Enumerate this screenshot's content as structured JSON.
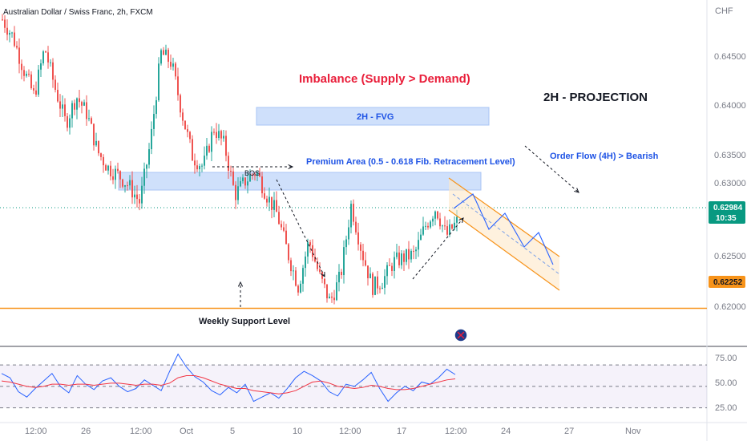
{
  "chart_data": {
    "type": "candlestick",
    "symbol_title": "Australian Dollar / Swiss Franc, 2h, FXCM",
    "currency": "CHF",
    "price_axis": {
      "ylim": [
        0.619,
        0.651
      ],
      "ticks": [
        "0.64500",
        "0.64000",
        "0.63500",
        "0.63000",
        "0.62500",
        "0.62000"
      ]
    },
    "time_axis_ticks": [
      "12:00",
      "26",
      "12:00",
      "Oct",
      "5",
      "10",
      "12:00",
      "17",
      "12:00",
      "24",
      "27",
      "Nov"
    ],
    "current_price": "0.62984",
    "countdown": "10:35",
    "support_price": "0.62252",
    "price_path": [
      0.6492,
      0.6476,
      0.6446,
      0.6421,
      0.6466,
      0.6428,
      0.6396,
      0.6421,
      0.6405,
      0.637,
      0.6355,
      0.6348,
      0.6338,
      0.6323,
      0.6378,
      0.6461,
      0.6452,
      0.6405,
      0.6365,
      0.6356,
      0.6392,
      0.6376,
      0.633,
      0.6343,
      0.6352,
      0.633,
      0.6312,
      0.6276,
      0.6245,
      0.6288,
      0.6255,
      0.6231,
      0.6255,
      0.6321,
      0.6278,
      0.6245,
      0.6251,
      0.6268,
      0.6272,
      0.6275,
      0.6301,
      0.6318,
      0.6292,
      0.6305
    ],
    "rsi": {
      "levels": [
        "75.00",
        "50.00",
        "25.00"
      ],
      "ylim": [
        20,
        85
      ],
      "band": [
        70,
        30
      ],
      "rsi_values": [
        62,
        58,
        45,
        40,
        48,
        55,
        62,
        50,
        44,
        60,
        52,
        47,
        55,
        58,
        50,
        45,
        48,
        56,
        51,
        46,
        64,
        80,
        68,
        59,
        54,
        46,
        42,
        49,
        44,
        52,
        36,
        40,
        44,
        39,
        48,
        58,
        64,
        60,
        55,
        45,
        41,
        52,
        50,
        56,
        63,
        48,
        36,
        44,
        50,
        46,
        54,
        52,
        58,
        66,
        61
      ],
      "ma_values": [
        55,
        54,
        52,
        50,
        49,
        50,
        52,
        52,
        51,
        52,
        52,
        51,
        52,
        53,
        53,
        52,
        51,
        52,
        52,
        51,
        53,
        58,
        60,
        60,
        58,
        55,
        52,
        50,
        48,
        48,
        46,
        45,
        44,
        43,
        44,
        46,
        50,
        54,
        55,
        53,
        50,
        49,
        48,
        49,
        51,
        50,
        48,
        47,
        47,
        48,
        50,
        52,
        54,
        56,
        57
      ]
    },
    "annotations": {
      "imbalance": "Imbalance (Supply > Demand)",
      "projection": "2H - PROJECTION",
      "fvg": "2H - FVG",
      "premium": "Premium Area (0.5 - 0.618 Fib. Retracement Level)",
      "order_flow": "Order Flow (4H) > Bearish",
      "bos": "BOS",
      "weekly_support": "Weekly Support Level"
    },
    "colors": {
      "up": "#26a69a",
      "down": "#ef5350",
      "support_line": "#f7931a",
      "zone_fill": "#cfe0fb",
      "rsi_line": "#2962ff",
      "rsi_ma": "#f23645",
      "channel": "#f7931a"
    }
  }
}
